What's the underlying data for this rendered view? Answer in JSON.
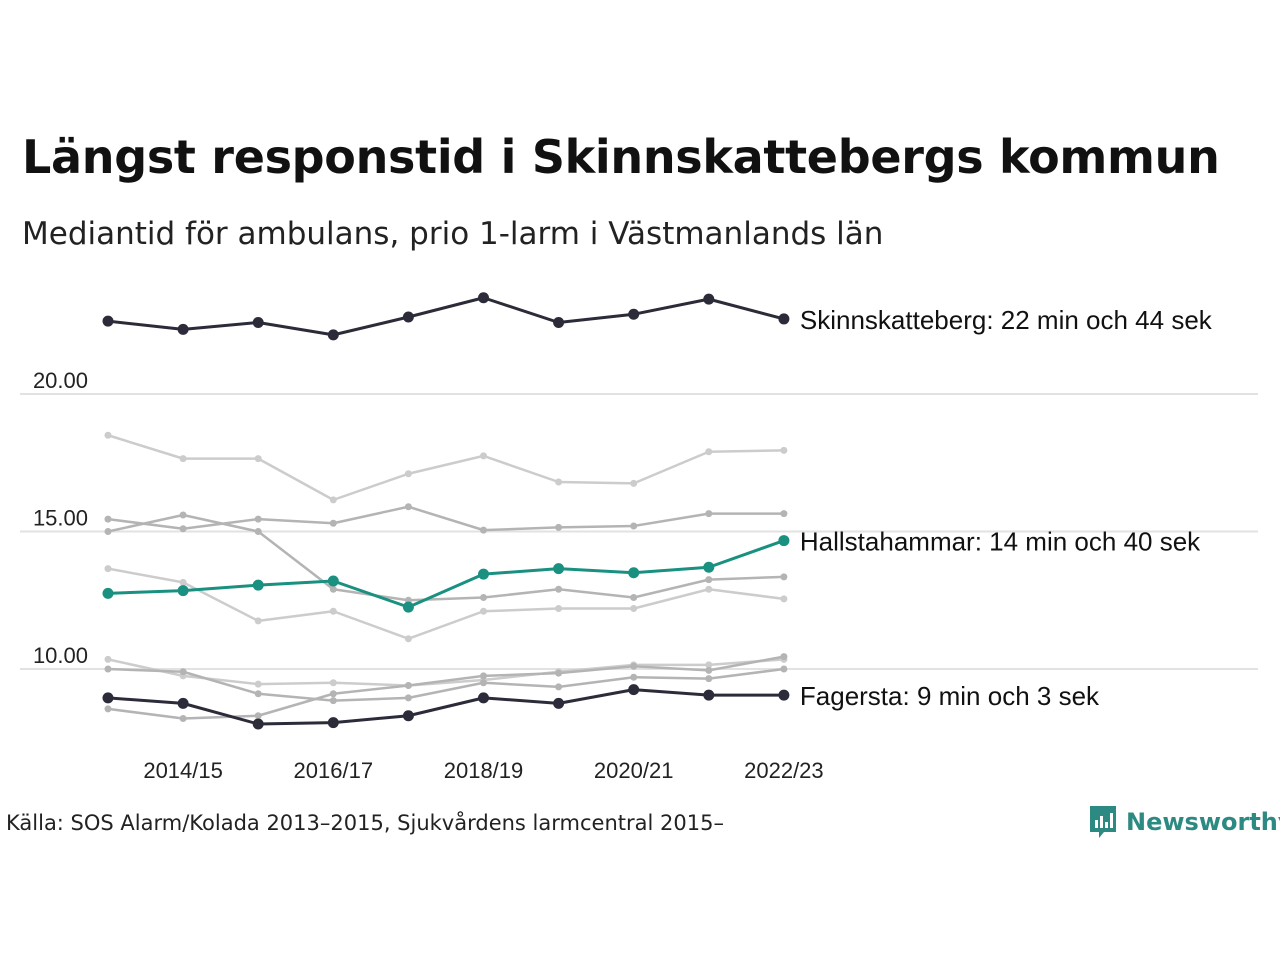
{
  "title": "Längst responstid i Skinnskattebergs kommun",
  "subtitle": "Mediantid för ambulans, prio 1-larm i Västmanlands län",
  "source": "Källa: SOS Alarm/Kolada 2013–2015, Sjukvårdens larmcentral 2015–",
  "logo_text": "Newsworthy",
  "colors": {
    "dark": "#2b2b3a",
    "highlight": "#1a9080",
    "gray": "#b4b4b4",
    "lightgray": "#cccccc",
    "grid": "#e2e2e2"
  },
  "chart_data": {
    "type": "line",
    "x": [
      "2013/14",
      "2014/15",
      "2015/16",
      "2016/17",
      "2017/18",
      "2018/19",
      "2019/20",
      "2020/21",
      "2021/22",
      "2022/23"
    ],
    "x_tick_labels": [
      "2014/15",
      "2016/17",
      "2018/19",
      "2020/21",
      "2022/23"
    ],
    "y_ticks": [
      10.0,
      15.0,
      20.0
    ],
    "y_tick_labels": [
      "10.00",
      "15.00",
      "20.00"
    ],
    "ylim": [
      7.4,
      24.2
    ],
    "grid": true,
    "series": [
      {
        "name": "Skinnskatteberg",
        "style": "dark",
        "label": "Skinnskatteberg: 22 min och 44 sek",
        "values": [
          22.65,
          22.35,
          22.6,
          22.15,
          22.8,
          23.5,
          22.6,
          22.9,
          23.45,
          22.73
        ]
      },
      {
        "name": "Hallstahammar",
        "style": "highlight",
        "label": "Hallstahammar: 14 min och 40 sek",
        "values": [
          12.75,
          12.85,
          13.05,
          13.2,
          12.25,
          13.45,
          13.65,
          13.5,
          13.7,
          14.67
        ]
      },
      {
        "name": "Fagersta",
        "style": "dark",
        "label": "Fagersta: 9 min och 3 sek",
        "values": [
          8.95,
          8.75,
          8.0,
          8.05,
          8.3,
          8.95,
          8.75,
          9.25,
          9.05,
          9.05
        ]
      },
      {
        "style": "lightgray",
        "values": [
          18.5,
          17.65,
          17.65,
          16.15,
          17.1,
          17.75,
          16.8,
          16.75,
          17.9,
          17.95
        ]
      },
      {
        "style": "gray",
        "values": [
          15.45,
          15.1,
          15.45,
          15.3,
          15.9,
          15.05,
          15.15,
          15.2,
          15.65,
          15.65
        ]
      },
      {
        "style": "gray",
        "values": [
          15.0,
          15.6,
          15.0,
          12.9,
          12.5,
          12.6,
          12.9,
          12.6,
          13.25,
          13.35
        ]
      },
      {
        "style": "lightgray",
        "values": [
          13.65,
          13.15,
          11.75,
          12.1,
          11.1,
          12.1,
          12.2,
          12.2,
          12.9,
          12.55
        ]
      },
      {
        "style": "lightgray",
        "values": [
          10.35,
          9.75,
          9.45,
          9.5,
          9.4,
          9.6,
          9.9,
          10.15,
          10.15,
          10.35
        ]
      },
      {
        "style": "gray",
        "values": [
          10.0,
          9.9,
          9.1,
          8.85,
          8.95,
          9.5,
          9.35,
          9.7,
          9.65,
          10.0
        ]
      },
      {
        "style": "gray",
        "values": [
          8.55,
          8.2,
          8.3,
          9.1,
          9.4,
          9.75,
          9.85,
          10.1,
          9.95,
          10.45
        ]
      }
    ]
  }
}
